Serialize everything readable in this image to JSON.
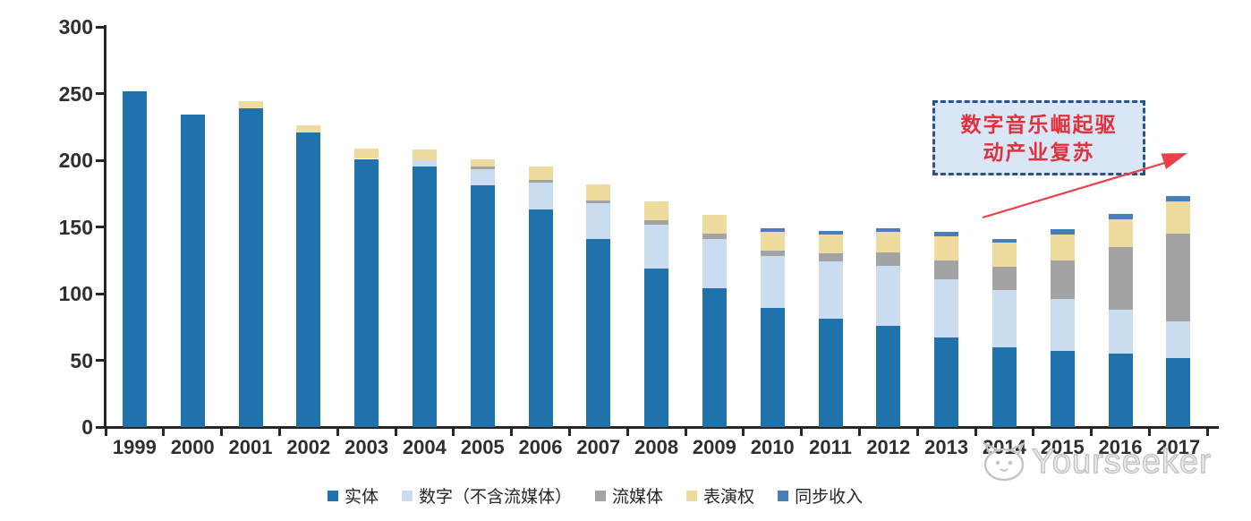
{
  "chart_data": {
    "type": "bar",
    "stacked": true,
    "categories": [
      "1999",
      "2000",
      "2001",
      "2002",
      "2003",
      "2004",
      "2005",
      "2006",
      "2007",
      "2008",
      "2009",
      "2010",
      "2011",
      "2012",
      "2013",
      "2014",
      "2015",
      "2016",
      "2017"
    ],
    "series": [
      {
        "key": "physical",
        "label": "实体",
        "color": "#2072AD",
        "values": [
          252,
          234,
          239,
          221,
          201,
          195,
          181,
          163,
          141,
          119,
          104,
          89,
          81,
          76,
          67,
          60,
          57,
          55,
          52
        ]
      },
      {
        "key": "digital_excl_streaming",
        "label": "数字（不含流媒体）",
        "color": "#C9DCF0",
        "values": [
          0,
          0,
          0,
          0,
          0,
          5,
          12,
          20,
          27,
          33,
          37,
          39,
          43,
          45,
          44,
          43,
          39,
          33,
          27
        ]
      },
      {
        "key": "streaming",
        "label": "流媒体",
        "color": "#A3A3A3",
        "values": [
          0,
          0,
          0,
          0,
          0,
          0,
          2,
          2,
          2,
          3,
          4,
          4,
          6,
          10,
          14,
          17,
          29,
          47,
          66
        ]
      },
      {
        "key": "performance_rights",
        "label": "表演权",
        "color": "#EDDC9D",
        "values": [
          0,
          0,
          5,
          5,
          8,
          8,
          6,
          10,
          12,
          14,
          14,
          14,
          14,
          15,
          18,
          18,
          19,
          21,
          24
        ]
      },
      {
        "key": "sync",
        "label": "同步收入",
        "color": "#4A7EBB",
        "values": [
          0,
          0,
          0,
          0,
          0,
          0,
          0,
          0,
          0,
          0,
          0,
          3,
          3,
          3,
          3,
          3,
          4,
          4,
          4
        ]
      }
    ],
    "y_axis": {
      "min": 0,
      "max": 300,
      "tick_step": 50,
      "ticks": [
        0,
        50,
        100,
        150,
        200,
        250,
        300
      ]
    },
    "legend_position": "bottom",
    "grid": false
  },
  "annotation": {
    "line1": "数字音乐崛起驱",
    "line2": "动产业复苏",
    "text_color": "#E2313D",
    "border_color": "#2E5186",
    "fill_color": "#D9E6F5",
    "arrow_color": "#EC4049"
  },
  "watermark": {
    "text": "Yourseeker",
    "color": "#C4C4C4"
  }
}
